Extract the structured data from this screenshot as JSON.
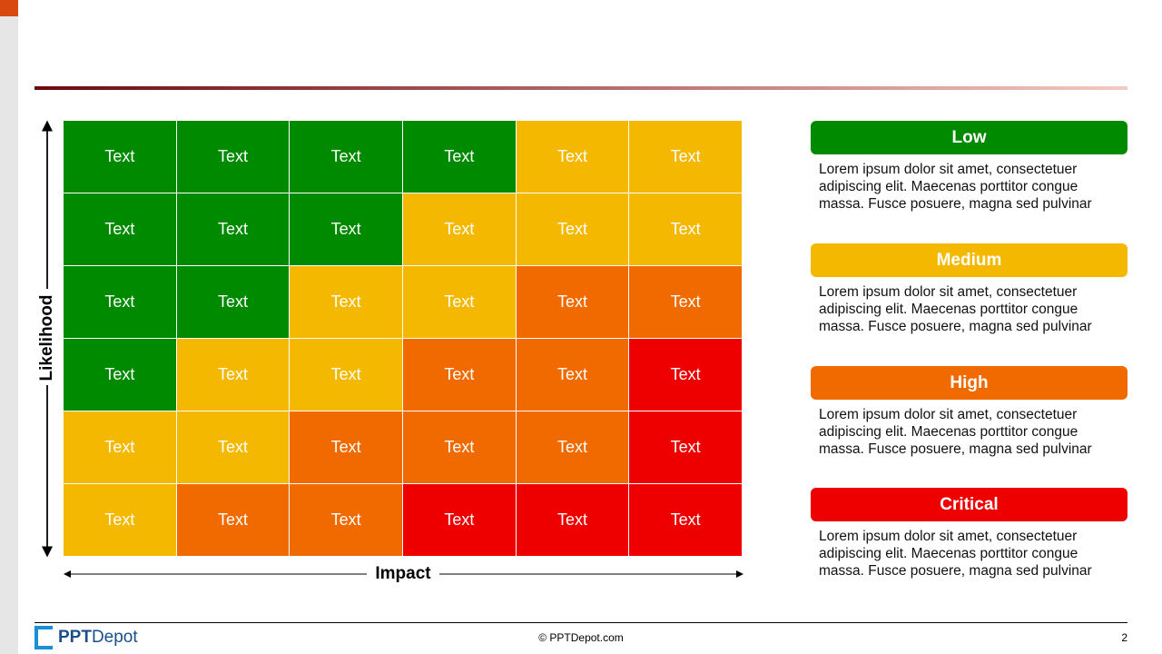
{
  "matrix": {
    "y_axis_label": "Likelihood",
    "x_axis_label": "Impact",
    "rows": [
      [
        {
          "text": "Text",
          "color": "#008a00"
        },
        {
          "text": "Text",
          "color": "#008a00"
        },
        {
          "text": "Text",
          "color": "#008a00"
        },
        {
          "text": "Text",
          "color": "#008a00"
        },
        {
          "text": "Text",
          "color": "#f5b800"
        },
        {
          "text": "Text",
          "color": "#f5b800"
        }
      ],
      [
        {
          "text": "Text",
          "color": "#008a00"
        },
        {
          "text": "Text",
          "color": "#008a00"
        },
        {
          "text": "Text",
          "color": "#008a00"
        },
        {
          "text": "Text",
          "color": "#f5b800"
        },
        {
          "text": "Text",
          "color": "#f5b800"
        },
        {
          "text": "Text",
          "color": "#f5b800"
        }
      ],
      [
        {
          "text": "Text",
          "color": "#008a00"
        },
        {
          "text": "Text",
          "color": "#008a00"
        },
        {
          "text": "Text",
          "color": "#f5b800"
        },
        {
          "text": "Text",
          "color": "#f5b800"
        },
        {
          "text": "Text",
          "color": "#f06a00"
        },
        {
          "text": "Text",
          "color": "#f06a00"
        }
      ],
      [
        {
          "text": "Text",
          "color": "#008a00"
        },
        {
          "text": "Text",
          "color": "#f5b800"
        },
        {
          "text": "Text",
          "color": "#f5b800"
        },
        {
          "text": "Text",
          "color": "#f06a00"
        },
        {
          "text": "Text",
          "color": "#f06a00"
        },
        {
          "text": "Text",
          "color": "#ee0000"
        }
      ],
      [
        {
          "text": "Text",
          "color": "#f5b800"
        },
        {
          "text": "Text",
          "color": "#f5b800"
        },
        {
          "text": "Text",
          "color": "#f06a00"
        },
        {
          "text": "Text",
          "color": "#f06a00"
        },
        {
          "text": "Text",
          "color": "#f06a00"
        },
        {
          "text": "Text",
          "color": "#ee0000"
        }
      ],
      [
        {
          "text": "Text",
          "color": "#f5b800"
        },
        {
          "text": "Text",
          "color": "#f06a00"
        },
        {
          "text": "Text",
          "color": "#f06a00"
        },
        {
          "text": "Text",
          "color": "#ee0000"
        },
        {
          "text": "Text",
          "color": "#ee0000"
        },
        {
          "text": "Text",
          "color": "#ee0000"
        }
      ]
    ]
  },
  "levels": [
    {
      "title": "Low",
      "color": "#008a00",
      "lines": [
        "Lorem ipsum dolor sit amet, consectetuer",
        "adipiscing elit. Maecenas porttitor congue",
        "massa. Fusce posuere, magna sed pulvinar"
      ]
    },
    {
      "title": "Medium",
      "color": "#f5b800",
      "lines": [
        "Lorem ipsum dolor sit amet, consectetuer",
        "adipiscing elit. Maecenas porttitor congue",
        "massa. Fusce posuere, magna sed pulvinar"
      ]
    },
    {
      "title": "High",
      "color": "#f06a00",
      "lines": [
        "Lorem ipsum dolor sit amet, consectetuer",
        "adipiscing elit. Maecenas porttitor congue",
        "massa. Fusce posuere, magna sed pulvinar"
      ]
    },
    {
      "title": "Critical",
      "color": "#ee0000",
      "lines": [
        "Lorem ipsum dolor sit amet, consectetuer",
        "adipiscing elit. Maecenas porttitor congue",
        "massa. Fusce posuere, magna sed pulvinar"
      ]
    }
  ],
  "footer": {
    "logo_prefix": "PPT",
    "logo_suffix": "Depot",
    "copyright": "© PPTDepot.com",
    "page": "2"
  }
}
